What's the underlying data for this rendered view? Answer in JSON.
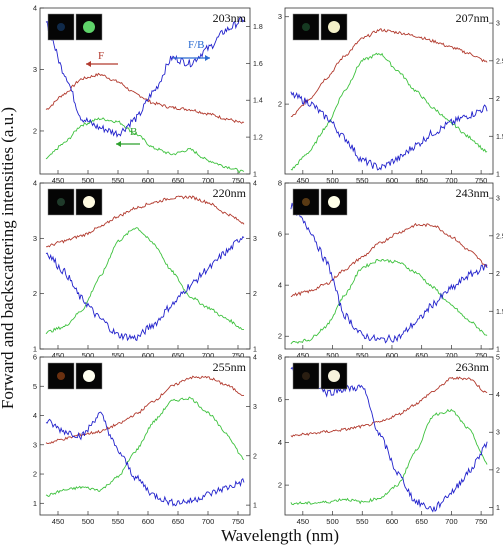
{
  "figure": {
    "ylabel": "Forward and backscattering intensities (a.u.)",
    "xlabel": "Wavelength (nm)"
  },
  "chart_data": [
    {
      "type": "line",
      "panel": "203nm",
      "label": "203nm",
      "xlim": [
        420,
        770
      ],
      "xticks": [
        450,
        500,
        550,
        600,
        650,
        700,
        750
      ],
      "left_ylim": [
        1.3,
        4.0
      ],
      "left_yticks": [
        2,
        3,
        4
      ],
      "right_ylim": [
        1.0,
        1.9
      ],
      "right_yticks": [
        1.0,
        1.2,
        1.4,
        1.6,
        1.8
      ],
      "colors": {
        "F": "#b23a2e",
        "B": "#3fc23f",
        "F/B": "#2323cc"
      },
      "annotations": [
        {
          "text": "F",
          "color": "#b23a2e",
          "arrow": "left"
        },
        {
          "text": "F/B",
          "color": "#2a6bd1",
          "arrow": "right"
        },
        {
          "text": "B",
          "color": "#2ca02c",
          "arrow": "left"
        }
      ],
      "series": [
        {
          "key": "F",
          "axis": "left",
          "x": [
            430,
            460,
            490,
            520,
            550,
            580,
            610,
            640,
            670,
            700,
            730,
            760
          ],
          "y": [
            2.35,
            2.6,
            2.85,
            2.92,
            2.8,
            2.6,
            2.45,
            2.38,
            2.35,
            2.28,
            2.2,
            2.12
          ]
        },
        {
          "key": "B",
          "axis": "left",
          "x": [
            430,
            460,
            490,
            520,
            550,
            580,
            610,
            640,
            670,
            700,
            730,
            760
          ],
          "y": [
            1.55,
            1.8,
            2.1,
            2.2,
            2.15,
            1.95,
            1.72,
            1.62,
            1.7,
            1.52,
            1.42,
            1.33
          ]
        },
        {
          "key": "F/B",
          "axis": "right",
          "x": [
            430,
            460,
            490,
            520,
            550,
            580,
            610,
            640,
            670,
            700,
            730,
            760
          ],
          "y": [
            1.82,
            1.55,
            1.3,
            1.25,
            1.22,
            1.3,
            1.45,
            1.63,
            1.6,
            1.68,
            1.78,
            1.84
          ]
        }
      ]
    },
    {
      "type": "line",
      "panel": "207nm",
      "label": "207nm",
      "xlim": [
        420,
        770
      ],
      "xticks": [
        450,
        500,
        550,
        600,
        650,
        700,
        750
      ],
      "left_ylim": [
        1.2,
        3.1
      ],
      "left_yticks": [
        2,
        3
      ],
      "right_ylim": [
        1.0,
        3.2
      ],
      "right_yticks": [
        1.0,
        1.5,
        2.0,
        2.5,
        3.0
      ],
      "colors": {
        "F": "#b23a2e",
        "B": "#3fc23f",
        "F/B": "#2323cc"
      },
      "series": [
        {
          "key": "F",
          "axis": "left",
          "x": [
            430,
            460,
            490,
            520,
            550,
            580,
            610,
            640,
            670,
            700,
            730,
            760
          ],
          "y": [
            1.85,
            2.05,
            2.3,
            2.55,
            2.75,
            2.85,
            2.82,
            2.78,
            2.72,
            2.65,
            2.58,
            2.48
          ]
        },
        {
          "key": "B",
          "axis": "left",
          "x": [
            430,
            460,
            490,
            520,
            550,
            580,
            610,
            640,
            670,
            700,
            730,
            760
          ],
          "y": [
            1.25,
            1.45,
            1.75,
            2.15,
            2.5,
            2.58,
            2.38,
            2.15,
            1.95,
            1.78,
            1.62,
            1.45
          ]
        },
        {
          "key": "F/B",
          "axis": "right",
          "x": [
            430,
            460,
            490,
            520,
            550,
            580,
            610,
            640,
            670,
            700,
            730,
            760
          ],
          "y": [
            2.05,
            1.95,
            1.75,
            1.48,
            1.18,
            1.08,
            1.2,
            1.38,
            1.55,
            1.68,
            1.78,
            1.88
          ]
        }
      ]
    },
    {
      "type": "line",
      "panel": "220nm",
      "label": "220nm",
      "xlim": [
        420,
        770
      ],
      "xticks": [
        450,
        500,
        550,
        600,
        650,
        700,
        750
      ],
      "left_ylim": [
        1.0,
        4.0
      ],
      "left_yticks": [
        1,
        2,
        3,
        4
      ],
      "right_ylim": [
        1.0,
        4.0
      ],
      "right_yticks": [
        1,
        2,
        3,
        4
      ],
      "colors": {
        "F": "#b23a2e",
        "B": "#3fc23f",
        "F/B": "#2323cc"
      },
      "series": [
        {
          "key": "F",
          "axis": "left",
          "x": [
            430,
            460,
            490,
            520,
            550,
            580,
            610,
            640,
            670,
            700,
            730,
            760
          ],
          "y": [
            2.85,
            2.95,
            3.05,
            3.2,
            3.4,
            3.55,
            3.65,
            3.73,
            3.75,
            3.65,
            3.45,
            3.28
          ]
        },
        {
          "key": "B",
          "axis": "left",
          "x": [
            430,
            460,
            490,
            520,
            550,
            580,
            610,
            640,
            670,
            700,
            730,
            760
          ],
          "y": [
            1.3,
            1.4,
            1.7,
            2.3,
            2.95,
            3.2,
            2.9,
            2.4,
            1.95,
            1.75,
            1.55,
            1.35
          ]
        },
        {
          "key": "F/B",
          "axis": "right",
          "x": [
            430,
            460,
            490,
            520,
            550,
            580,
            610,
            640,
            670,
            700,
            730,
            760
          ],
          "y": [
            2.75,
            2.4,
            1.9,
            1.55,
            1.25,
            1.2,
            1.45,
            1.8,
            2.15,
            2.45,
            2.75,
            3.05
          ]
        }
      ]
    },
    {
      "type": "line",
      "panel": "243nm",
      "label": "243nm",
      "xlim": [
        420,
        770
      ],
      "xticks": [
        450,
        500,
        550,
        600,
        650,
        700,
        750
      ],
      "left_ylim": [
        1.5,
        8.0
      ],
      "left_yticks": [
        2,
        4,
        6,
        8
      ],
      "right_ylim": [
        1.0,
        3.2
      ],
      "right_yticks": [
        1.0,
        1.5,
        2.0,
        2.5,
        3.0
      ],
      "colors": {
        "F": "#b23a2e",
        "B": "#3fc23f",
        "F/B": "#2323cc"
      },
      "series": [
        {
          "key": "F",
          "axis": "left",
          "x": [
            430,
            460,
            490,
            520,
            550,
            580,
            610,
            640,
            670,
            700,
            730,
            760
          ],
          "y": [
            3.6,
            3.75,
            4.05,
            4.6,
            5.1,
            5.65,
            6.05,
            6.35,
            6.35,
            5.9,
            5.35,
            4.75
          ]
        },
        {
          "key": "B",
          "axis": "left",
          "x": [
            430,
            460,
            490,
            520,
            550,
            580,
            610,
            640,
            670,
            700,
            730,
            760
          ],
          "y": [
            1.75,
            1.85,
            2.4,
            3.6,
            4.7,
            5.0,
            4.9,
            4.5,
            3.9,
            3.2,
            2.6,
            2.05
          ]
        },
        {
          "key": "F/B",
          "axis": "right",
          "x": [
            430,
            460,
            490,
            520,
            550,
            580,
            610,
            640,
            670,
            700,
            730,
            760
          ],
          "y": [
            2.9,
            2.6,
            2.15,
            1.45,
            1.18,
            1.12,
            1.15,
            1.35,
            1.6,
            1.8,
            1.98,
            2.1
          ]
        }
      ]
    },
    {
      "type": "line",
      "panel": "255nm",
      "label": "255nm",
      "xlim": [
        420,
        770
      ],
      "xticks": [
        450,
        500,
        550,
        600,
        650,
        700,
        750
      ],
      "left_ylim": [
        0.6,
        6.0
      ],
      "left_yticks": [
        1,
        2,
        3,
        4,
        5,
        6
      ],
      "right_ylim": [
        0.8,
        4.0
      ],
      "right_yticks": [
        1,
        2,
        3,
        4
      ],
      "colors": {
        "F": "#b23a2e",
        "B": "#3fc23f",
        "F/B": "#2323cc"
      },
      "series": [
        {
          "key": "F",
          "axis": "left",
          "x": [
            430,
            460,
            490,
            520,
            550,
            580,
            610,
            640,
            670,
            700,
            730,
            760
          ],
          "y": [
            3.05,
            3.2,
            3.35,
            3.45,
            3.7,
            4.05,
            4.5,
            5.0,
            5.3,
            5.3,
            5.05,
            4.7
          ]
        },
        {
          "key": "B",
          "axis": "left",
          "x": [
            430,
            460,
            490,
            520,
            550,
            580,
            610,
            640,
            670,
            700,
            730,
            760
          ],
          "y": [
            1.25,
            1.45,
            1.55,
            1.45,
            1.9,
            2.8,
            3.8,
            4.5,
            4.6,
            4.1,
            3.4,
            2.5
          ]
        },
        {
          "key": "F/B",
          "axis": "right",
          "x": [
            430,
            460,
            490,
            520,
            550,
            580,
            610,
            640,
            670,
            700,
            730,
            760
          ],
          "y": [
            2.7,
            2.5,
            2.4,
            2.85,
            2.1,
            1.55,
            1.2,
            1.05,
            1.08,
            1.22,
            1.35,
            1.48
          ]
        }
      ]
    },
    {
      "type": "line",
      "panel": "263nm",
      "label": "263nm",
      "xlim": [
        420,
        770
      ],
      "xticks": [
        450,
        500,
        550,
        600,
        650,
        700,
        750
      ],
      "left_ylim": [
        0.6,
        8.0
      ],
      "left_yticks": [
        2,
        4,
        6,
        8
      ],
      "right_ylim": [
        0.8,
        5.0
      ],
      "right_yticks": [
        1,
        2,
        3,
        4,
        5
      ],
      "colors": {
        "F": "#b23a2e",
        "B": "#3fc23f",
        "F/B": "#2323cc"
      },
      "series": [
        {
          "key": "F",
          "axis": "left",
          "x": [
            430,
            460,
            490,
            520,
            550,
            580,
            610,
            640,
            670,
            700,
            730,
            760
          ],
          "y": [
            4.3,
            4.4,
            4.5,
            4.6,
            4.75,
            4.95,
            5.3,
            5.8,
            6.4,
            7.0,
            7.0,
            6.3
          ]
        },
        {
          "key": "B",
          "axis": "left",
          "x": [
            430,
            460,
            490,
            520,
            550,
            580,
            610,
            640,
            670,
            700,
            730,
            760
          ],
          "y": [
            1.15,
            1.15,
            1.2,
            1.35,
            1.2,
            1.4,
            2.0,
            3.6,
            5.3,
            5.5,
            4.6,
            3.0
          ]
        },
        {
          "key": "F/B",
          "axis": "right",
          "x": [
            430,
            460,
            490,
            520,
            550,
            580,
            610,
            640,
            670,
            700,
            730,
            760
          ],
          "y": [
            4.7,
            4.5,
            4.05,
            4.15,
            4.2,
            2.9,
            1.9,
            1.15,
            0.95,
            1.4,
            1.95,
            2.7
          ]
        }
      ]
    }
  ]
}
